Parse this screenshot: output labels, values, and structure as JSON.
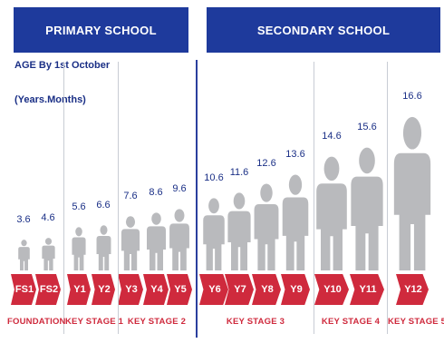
{
  "headers": {
    "primary": "PRIMARY SCHOOL",
    "secondary": "SECONDARY SCHOOL"
  },
  "age_title": "AGE By 1st October",
  "age_unit": "(Years.Months)",
  "colors": {
    "navy": "#1e3a9c",
    "red": "#cf2a3d",
    "figure_grey": "#b9babd"
  },
  "years": [
    {
      "code": "FS1",
      "age": "3.6"
    },
    {
      "code": "FS2",
      "age": "4.6"
    },
    {
      "code": "Y1",
      "age": "5.6"
    },
    {
      "code": "Y2",
      "age": "6.6"
    },
    {
      "code": "Y3",
      "age": "7.6"
    },
    {
      "code": "Y4",
      "age": "8.6"
    },
    {
      "code": "Y5",
      "age": "9.6"
    },
    {
      "code": "Y6",
      "age": "10.6"
    },
    {
      "code": "Y7",
      "age": "11.6"
    },
    {
      "code": "Y8",
      "age": "12.6"
    },
    {
      "code": "Y9",
      "age": "13.6"
    },
    {
      "code": "Y10",
      "age": "14.6"
    },
    {
      "code": "Y11",
      "age": "15.6"
    },
    {
      "code": "Y12",
      "age": "16.6"
    }
  ],
  "stages": [
    "FOUNDATION",
    "KEY STAGE 1",
    "KEY STAGE 2",
    "KEY STAGE 3",
    "KEY STAGE 4",
    "KEY STAGE 5"
  ]
}
